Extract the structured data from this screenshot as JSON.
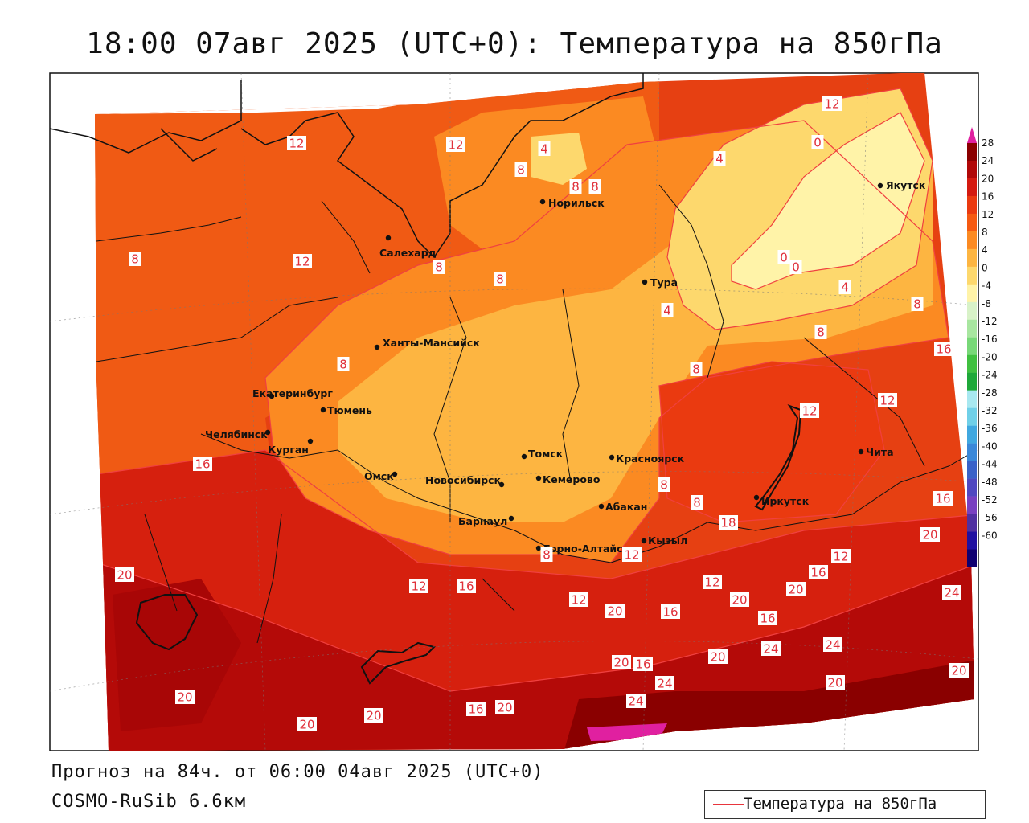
{
  "title": "18:00 07авг 2025 (UTC+0): Температура на 850гПа",
  "forecast_line": "Прогноз на 84ч. от 06:00 04авг 2025 (UTC+0)",
  "model_line": "COSMO-RuSib 6.6км",
  "legend_label": "Температура на 850гПа",
  "colorbar": {
    "ticks": [
      "28",
      "24",
      "20",
      "16",
      "12",
      "8",
      "4",
      "0",
      "-4",
      "-8",
      "-12",
      "-16",
      "-20",
      "-24",
      "-28",
      "-32",
      "-36",
      "-40",
      "-44",
      "-48",
      "-52",
      "-56",
      "-60"
    ],
    "colors": [
      "#8a0000",
      "#b00808",
      "#d41a10",
      "#ea3a10",
      "#f55a12",
      "#fb8a22",
      "#fdb541",
      "#fdd86d",
      "#fff3a8",
      "#d8f2c8",
      "#a8e6a0",
      "#78d878",
      "#40c040",
      "#1fa83a",
      "#a8e8f0",
      "#70d0e8",
      "#40a8e0",
      "#3a88d8",
      "#3a62c8",
      "#5048c0",
      "#7840c0",
      "#5030a0",
      "#2010a0",
      "#100070"
    ],
    "top_color": "#e020a0"
  },
  "cities": [
    {
      "name": "Якутск"
    },
    {
      "name": "Норильск"
    },
    {
      "name": "Салехард"
    },
    {
      "name": "Тура"
    },
    {
      "name": "Ханты-Мансийск"
    },
    {
      "name": "Екатеринбург"
    },
    {
      "name": "Тюмень"
    },
    {
      "name": "Челябинск"
    },
    {
      "name": "Курган"
    },
    {
      "name": "Омск"
    },
    {
      "name": "Новосибирск"
    },
    {
      "name": "Томск"
    },
    {
      "name": "Кемерово"
    },
    {
      "name": "Красноярск"
    },
    {
      "name": "Барнаул"
    },
    {
      "name": "Абакан"
    },
    {
      "name": "Горно-Алтайск"
    },
    {
      "name": "Кызыл"
    },
    {
      "name": "Иркутск"
    },
    {
      "name": "Чита"
    }
  ],
  "contour_labels": [
    "12",
    "8",
    "12",
    "8",
    "8",
    "8",
    "4",
    "0",
    "4",
    "12",
    "12",
    "8",
    "8",
    "0",
    "0",
    "4",
    "4",
    "8",
    "8",
    "8",
    "8",
    "16",
    "12",
    "12",
    "16",
    "16",
    "20",
    "8",
    "8",
    "18",
    "20",
    "12",
    "12",
    "16",
    "12",
    "8",
    "12",
    "20",
    "12",
    "16",
    "24",
    "20",
    "16",
    "16",
    "20",
    "24",
    "24",
    "20",
    "20",
    "16",
    "24",
    "20",
    "20",
    "20",
    "16",
    "20",
    "24",
    "20",
    "20"
  ]
}
